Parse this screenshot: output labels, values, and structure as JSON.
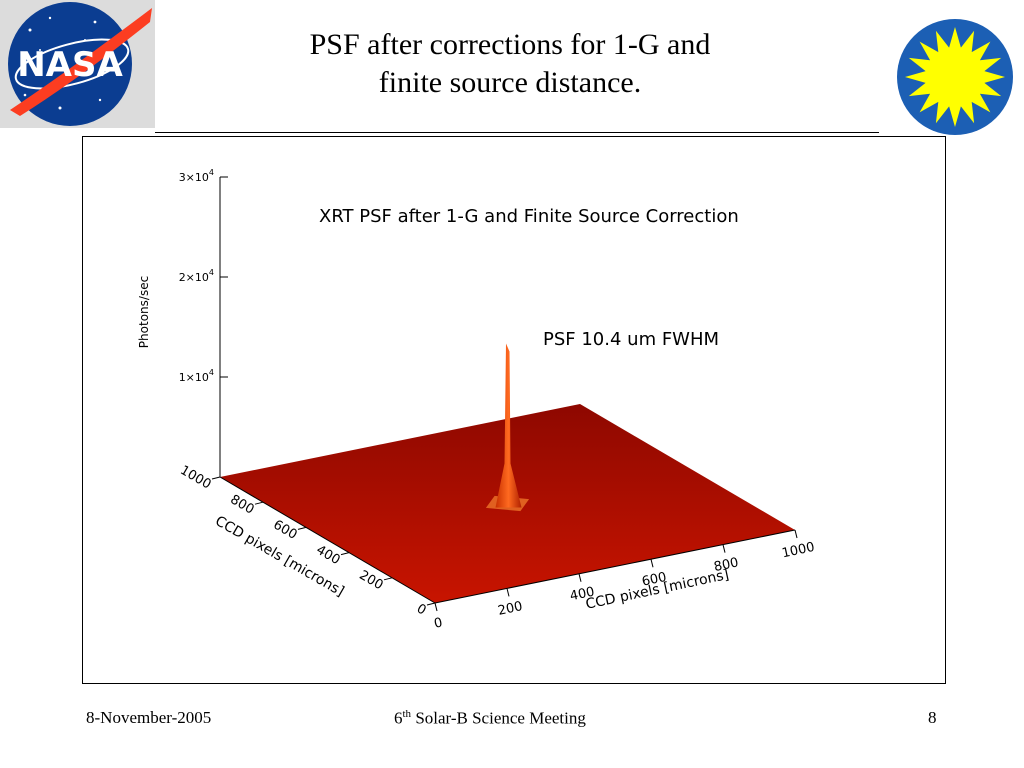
{
  "slide": {
    "title_lines": [
      "PSF after corrections for 1-G and",
      "finite source distance."
    ],
    "footer": {
      "date": "8-November-2005",
      "meeting_ordinal": "6",
      "meeting_ordinal_suffix": "th",
      "meeting_text": " Solar-B Science Meeting",
      "page": "8"
    },
    "logos": {
      "left": "nasa-logo",
      "right": "sun-logo"
    },
    "colors": {
      "surface": "#a00a00",
      "peak": "#e84a10",
      "nasa_blue": "#0b3d91",
      "nasa_red": "#fc3d21",
      "sun_yellow": "#ffff00",
      "sun_blue": "#1c5fb4"
    }
  },
  "chart_data": {
    "type": "surface",
    "title": "XRT PSF after 1-G and Finite Source Correction",
    "annotation": "PSF 10.4 um FWHM",
    "zlabel": "Photons/sec",
    "xlabel": "CCD pixels [microns]",
    "ylabel": "CCD pixels [microns]",
    "z_ticks": [
      {
        "value": 10000,
        "mantissa": "1",
        "exp": "4"
      },
      {
        "value": 20000,
        "mantissa": "2",
        "exp": "4"
      },
      {
        "value": 30000,
        "mantissa": "3",
        "exp": "4"
      }
    ],
    "x_ticks": [
      "0",
      "200",
      "400",
      "600",
      "800",
      "1000"
    ],
    "y_ticks": [
      "0",
      "200",
      "400",
      "600",
      "800",
      "1000"
    ],
    "xlim": [
      0,
      1000
    ],
    "ylim": [
      0,
      1000
    ],
    "zlim": [
      0,
      30000
    ],
    "peak": {
      "x": 500,
      "y": 500,
      "z": 16000
    }
  }
}
